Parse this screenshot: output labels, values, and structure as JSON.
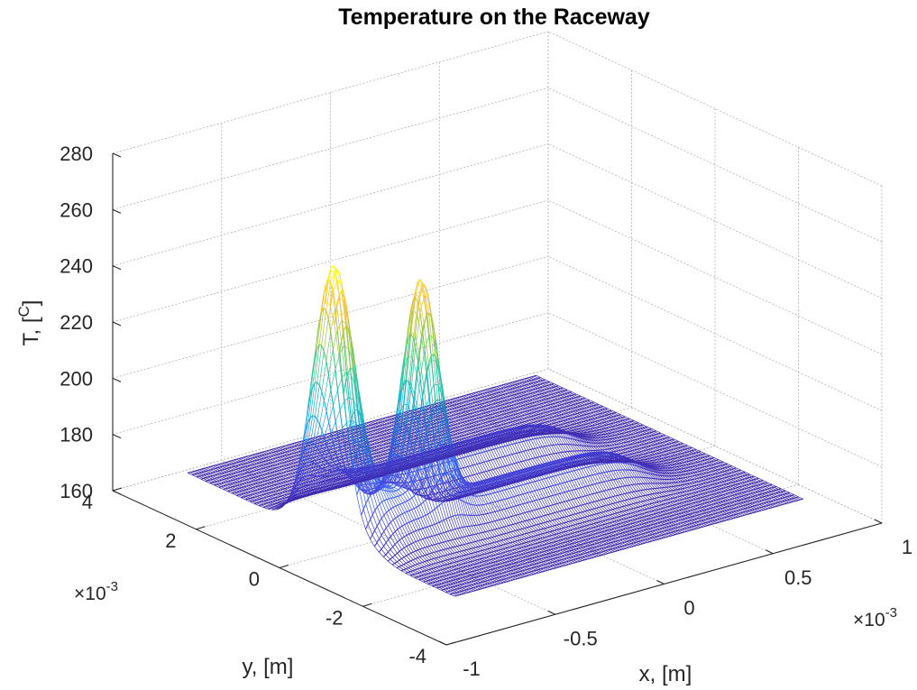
{
  "chart_data": {
    "type": "surface",
    "title": "Temperature on the Raceway",
    "xlabel": "x, [m]",
    "ylabel": "y, [m]",
    "zlabel": "T, [",
    "zlabel_unit": "C",
    "zlabel_close": "]",
    "x_multiplier": "×10",
    "x_multiplier_exp": "-3",
    "y_multiplier": "×10",
    "y_multiplier_exp": "-3",
    "xlim": [
      -1,
      1
    ],
    "ylim": [
      -4,
      4
    ],
    "zlim": [
      160,
      280
    ],
    "x_ticks": [
      -1,
      -0.5,
      0,
      0.5,
      1
    ],
    "x_tick_labels": [
      "-1",
      "-0.5",
      "0",
      "0.5",
      "1"
    ],
    "y_ticks": [
      -4,
      -2,
      0,
      2,
      4
    ],
    "y_tick_labels": [
      "-4",
      "-2",
      "0",
      "2",
      "4"
    ],
    "z_ticks": [
      160,
      180,
      200,
      220,
      240,
      260,
      280
    ],
    "z_tick_labels": [
      "160",
      "180",
      "200",
      "220",
      "240",
      "260",
      "280"
    ],
    "grid": true,
    "colormap": "parula",
    "base_temperature": 166,
    "peaks": [
      {
        "x": -0.75,
        "y": 0.0,
        "T_max": 260
      },
      {
        "x": -0.45,
        "y": -0.5,
        "T_max": 245
      }
    ],
    "ridge_plateau_T": 180,
    "colors": {
      "low": "#3e26a8",
      "mid": "#13beb8",
      "high": "#f9fb15"
    }
  }
}
